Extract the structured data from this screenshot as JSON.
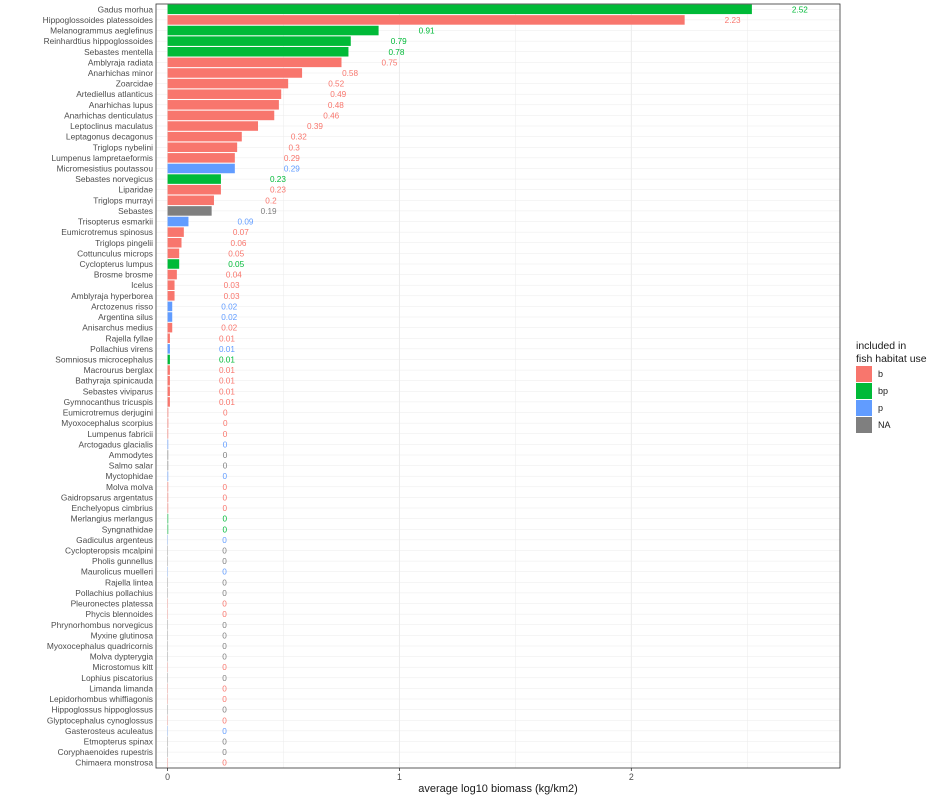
{
  "chart_data": {
    "type": "bar",
    "orientation": "horizontal",
    "xlabel": "average log10 biomass (kg/km2)",
    "ylabel": "",
    "xlim": [
      -0.05,
      2.9
    ],
    "xticks": [
      0,
      1,
      2
    ],
    "grid": true,
    "legend": {
      "title_lines": [
        "included in",
        "fish habitat use"
      ],
      "placement": "right",
      "entries": [
        {
          "key": "b",
          "label": "b",
          "color": "#F8766D"
        },
        {
          "key": "bp",
          "label": "bp",
          "color": "#00BA38"
        },
        {
          "key": "p",
          "label": "p",
          "color": "#619CFF"
        },
        {
          "key": "NA",
          "label": "NA",
          "color": "#7F7F7F"
        }
      ]
    },
    "bars": [
      {
        "category": "Gadus morhua",
        "value": 2.52,
        "label": "2.52",
        "group": "bp"
      },
      {
        "category": "Hippoglossoides platessoides",
        "value": 2.23,
        "label": "2.23",
        "group": "b"
      },
      {
        "category": "Melanogrammus aeglefinus",
        "value": 0.91,
        "label": "0.91",
        "group": "bp"
      },
      {
        "category": "Reinhardtius hippoglossoides",
        "value": 0.79,
        "label": "0.79",
        "group": "bp"
      },
      {
        "category": "Sebastes mentella",
        "value": 0.78,
        "label": "0.78",
        "group": "bp"
      },
      {
        "category": "Amblyraja radiata",
        "value": 0.75,
        "label": "0.75",
        "group": "b"
      },
      {
        "category": "Anarhichas minor",
        "value": 0.58,
        "label": "0.58",
        "group": "b"
      },
      {
        "category": "Zoarcidae",
        "value": 0.52,
        "label": "0.52",
        "group": "b"
      },
      {
        "category": "Artediellus atlanticus",
        "value": 0.49,
        "label": "0.49",
        "group": "b"
      },
      {
        "category": "Anarhichas lupus",
        "value": 0.48,
        "label": "0.48",
        "group": "b"
      },
      {
        "category": "Anarhichas denticulatus",
        "value": 0.46,
        "label": "0.46",
        "group": "b"
      },
      {
        "category": "Leptoclinus maculatus",
        "value": 0.39,
        "label": "0.39",
        "group": "b"
      },
      {
        "category": "Leptagonus decagonus",
        "value": 0.32,
        "label": "0.32",
        "group": "b"
      },
      {
        "category": "Triglops nybelini",
        "value": 0.3,
        "label": "0.3",
        "group": "b"
      },
      {
        "category": "Lumpenus lampretaeformis",
        "value": 0.29,
        "label": "0.29",
        "group": "b"
      },
      {
        "category": "Micromesistius poutassou",
        "value": 0.29,
        "label": "0.29",
        "group": "p"
      },
      {
        "category": "Sebastes norvegicus",
        "value": 0.23,
        "label": "0.23",
        "group": "bp"
      },
      {
        "category": "Liparidae",
        "value": 0.23,
        "label": "0.23",
        "group": "b"
      },
      {
        "category": "Triglops murrayi",
        "value": 0.2,
        "label": "0.2",
        "group": "b"
      },
      {
        "category": "Sebastes",
        "value": 0.19,
        "label": "0.19",
        "group": "NA"
      },
      {
        "category": "Trisopterus esmarkii",
        "value": 0.09,
        "label": "0.09",
        "group": "p"
      },
      {
        "category": "Eumicrotremus spinosus",
        "value": 0.07,
        "label": "0.07",
        "group": "b"
      },
      {
        "category": "Triglops pingelii",
        "value": 0.06,
        "label": "0.06",
        "group": "b"
      },
      {
        "category": "Cottunculus microps",
        "value": 0.05,
        "label": "0.05",
        "group": "b"
      },
      {
        "category": "Cyclopterus lumpus",
        "value": 0.05,
        "label": "0.05",
        "group": "bp"
      },
      {
        "category": "Brosme brosme",
        "value": 0.04,
        "label": "0.04",
        "group": "b"
      },
      {
        "category": "Icelus",
        "value": 0.03,
        "label": "0.03",
        "group": "b"
      },
      {
        "category": "Amblyraja hyperborea",
        "value": 0.03,
        "label": "0.03",
        "group": "b"
      },
      {
        "category": "Arctozenus risso",
        "value": 0.02,
        "label": "0.02",
        "group": "p"
      },
      {
        "category": "Argentina silus",
        "value": 0.02,
        "label": "0.02",
        "group": "p"
      },
      {
        "category": "Anisarchus medius",
        "value": 0.02,
        "label": "0.02",
        "group": "b"
      },
      {
        "category": "Rajella fyllae",
        "value": 0.01,
        "label": "0.01",
        "group": "b"
      },
      {
        "category": "Pollachius virens",
        "value": 0.01,
        "label": "0.01",
        "group": "p"
      },
      {
        "category": "Somniosus microcephalus",
        "value": 0.01,
        "label": "0.01",
        "group": "bp"
      },
      {
        "category": "Macrourus berglax",
        "value": 0.01,
        "label": "0.01",
        "group": "b"
      },
      {
        "category": "Bathyraja spinicauda",
        "value": 0.01,
        "label": "0.01",
        "group": "b"
      },
      {
        "category": "Sebastes viviparus",
        "value": 0.01,
        "label": "0.01",
        "group": "b"
      },
      {
        "category": "Gymnocanthus tricuspis",
        "value": 0.01,
        "label": "0.01",
        "group": "b"
      },
      {
        "category": "Eumicrotremus derjugini",
        "value": 0.003,
        "label": "0",
        "group": "b"
      },
      {
        "category": "Myoxocephalus scorpius",
        "value": 0.003,
        "label": "0",
        "group": "b"
      },
      {
        "category": "Lumpenus fabricii",
        "value": 0.002,
        "label": "0",
        "group": "b"
      },
      {
        "category": "Arctogadus glacialis",
        "value": 0.002,
        "label": "0",
        "group": "p"
      },
      {
        "category": "Ammodytes",
        "value": 0.002,
        "label": "0",
        "group": "NA"
      },
      {
        "category": "Salmo salar",
        "value": 0.002,
        "label": "0",
        "group": "NA"
      },
      {
        "category": "Myctophidae",
        "value": 0.001,
        "label": "0",
        "group": "p"
      },
      {
        "category": "Molva molva",
        "value": 0.001,
        "label": "0",
        "group": "b"
      },
      {
        "category": "Gaidropsarus argentatus",
        "value": 0.001,
        "label": "0",
        "group": "b"
      },
      {
        "category": "Enchelyopus cimbrius",
        "value": 0.001,
        "label": "0",
        "group": "b"
      },
      {
        "category": "Merlangius merlangus",
        "value": 0.001,
        "label": "0",
        "group": "bp"
      },
      {
        "category": "Syngnathidae",
        "value": 0.001,
        "label": "0",
        "group": "bp"
      },
      {
        "category": "Gadiculus argenteus",
        "value": 0.0,
        "label": "0",
        "group": "p"
      },
      {
        "category": "Cyclopteropsis mcalpini",
        "value": 0.0,
        "label": "0",
        "group": "NA"
      },
      {
        "category": "Pholis gunnellus",
        "value": 0.0,
        "label": "0",
        "group": "NA"
      },
      {
        "category": "Maurolicus muelleri",
        "value": 0.0,
        "label": "0",
        "group": "p"
      },
      {
        "category": "Rajella lintea",
        "value": 0.0,
        "label": "0",
        "group": "NA"
      },
      {
        "category": "Pollachius pollachius",
        "value": 0.0,
        "label": "0",
        "group": "NA"
      },
      {
        "category": "Pleuronectes platessa",
        "value": 0.0,
        "label": "0",
        "group": "b"
      },
      {
        "category": "Phycis blennoides",
        "value": 0.0,
        "label": "0",
        "group": "b"
      },
      {
        "category": "Phrynorhombus norvegicus",
        "value": 0.0,
        "label": "0",
        "group": "NA"
      },
      {
        "category": "Myxine glutinosa",
        "value": 0.0,
        "label": "0",
        "group": "NA"
      },
      {
        "category": "Myoxocephalus quadricornis",
        "value": 0.0,
        "label": "0",
        "group": "NA"
      },
      {
        "category": "Molva dypterygia",
        "value": 0.0,
        "label": "0",
        "group": "NA"
      },
      {
        "category": "Microstomus kitt",
        "value": 0.0,
        "label": "0",
        "group": "b"
      },
      {
        "category": "Lophius piscatorius",
        "value": 0.0,
        "label": "0",
        "group": "NA"
      },
      {
        "category": "Limanda limanda",
        "value": 0.0,
        "label": "0",
        "group": "b"
      },
      {
        "category": "Lepidorhombus whiffiagonis",
        "value": 0.0,
        "label": "0",
        "group": "b"
      },
      {
        "category": "Hippoglossus hippoglossus",
        "value": 0.0,
        "label": "0",
        "group": "NA"
      },
      {
        "category": "Glyptocephalus cynoglossus",
        "value": 0.0,
        "label": "0",
        "group": "b"
      },
      {
        "category": "Gasterosteus aculeatus",
        "value": 0.0,
        "label": "0",
        "group": "p"
      },
      {
        "category": "Etmopterus spinax",
        "value": 0.0,
        "label": "0",
        "group": "NA"
      },
      {
        "category": "Coryphaenoides rupestris",
        "value": 0.0,
        "label": "0",
        "group": "NA"
      },
      {
        "category": "Chimaera monstrosa",
        "value": 0.0,
        "label": "0",
        "group": "b"
      }
    ]
  }
}
